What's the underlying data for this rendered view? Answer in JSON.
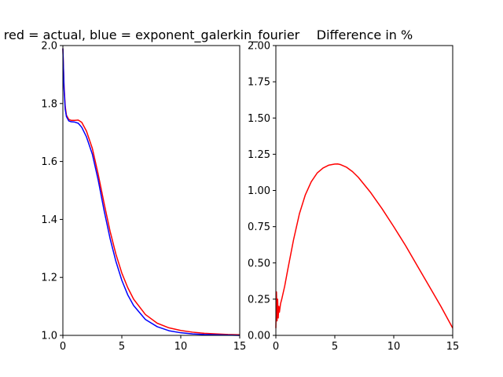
{
  "chart_data": [
    {
      "type": "line",
      "title": "red = actual, blue = exponent_galerkin_fourier",
      "xlabel": "",
      "ylabel": "",
      "xlim": [
        0,
        15
      ],
      "ylim": [
        1.0,
        2.0
      ],
      "x_ticks": [
        "0",
        "5",
        "10",
        "15"
      ],
      "y_ticks": [
        "1.0",
        "1.2",
        "1.4",
        "1.6",
        "1.8",
        "2.0"
      ],
      "grid": false,
      "series": [
        {
          "color": "#ff0000",
          "x": [
            0,
            0.1,
            0.2,
            0.3,
            0.5,
            0.7,
            1.0,
            1.3,
            1.6,
            2.0,
            2.5,
            3.0,
            3.5,
            4.0,
            4.5,
            5.0,
            5.5,
            6.0,
            7.0,
            8.0,
            9.0,
            10.0,
            11.0,
            12.0,
            13.0,
            14.0,
            15.0
          ],
          "y": [
            1.99,
            1.86,
            1.79,
            1.76,
            1.745,
            1.742,
            1.742,
            1.743,
            1.735,
            1.705,
            1.645,
            1.555,
            1.455,
            1.36,
            1.28,
            1.215,
            1.165,
            1.125,
            1.072,
            1.042,
            1.026,
            1.017,
            1.011,
            1.007,
            1.005,
            1.003,
            1.002
          ]
        },
        {
          "color": "#0000ff",
          "x": [
            0,
            0.1,
            0.2,
            0.3,
            0.5,
            0.7,
            1.0,
            1.3,
            1.6,
            2.0,
            2.5,
            3.0,
            3.5,
            4.0,
            4.5,
            5.0,
            5.5,
            6.0,
            7.0,
            8.0,
            9.0,
            10.0,
            11.0,
            12.0,
            13.0,
            14.0,
            15.0
          ],
          "y": [
            1.99,
            1.85,
            1.78,
            1.755,
            1.74,
            1.737,
            1.736,
            1.732,
            1.718,
            1.685,
            1.625,
            1.535,
            1.43,
            1.335,
            1.255,
            1.19,
            1.14,
            1.103,
            1.055,
            1.03,
            1.016,
            1.009,
            1.005,
            1.003,
            1.002,
            1.001,
            1.0
          ]
        }
      ]
    },
    {
      "type": "line",
      "title": "Difference in %",
      "xlabel": "",
      "ylabel": "",
      "xlim": [
        0,
        15
      ],
      "ylim": [
        0.0,
        2.0
      ],
      "x_ticks": [
        "0",
        "5",
        "10",
        "15"
      ],
      "y_ticks": [
        "0.00",
        "0.25",
        "0.50",
        "0.75",
        "1.00",
        "1.25",
        "1.50",
        "1.75",
        "2.00"
      ],
      "grid": false,
      "series": [
        {
          "color": "#ff0000",
          "x": [
            0,
            0.05,
            0.1,
            0.15,
            0.2,
            0.25,
            0.3,
            0.4,
            0.5,
            0.75,
            1.0,
            1.5,
            2.0,
            2.5,
            3.0,
            3.5,
            4.0,
            4.5,
            5.0,
            5.25,
            5.5,
            6.0,
            6.5,
            7.0,
            8.0,
            9.0,
            10.0,
            11.0,
            12.0,
            13.0,
            14.0,
            15.0
          ],
          "y": [
            0.05,
            0.3,
            0.1,
            0.25,
            0.12,
            0.2,
            0.16,
            0.22,
            0.25,
            0.34,
            0.45,
            0.66,
            0.84,
            0.97,
            1.06,
            1.12,
            1.155,
            1.175,
            1.182,
            1.183,
            1.178,
            1.16,
            1.13,
            1.09,
            0.99,
            0.875,
            0.75,
            0.62,
            0.48,
            0.34,
            0.2,
            0.05
          ]
        }
      ]
    }
  ]
}
